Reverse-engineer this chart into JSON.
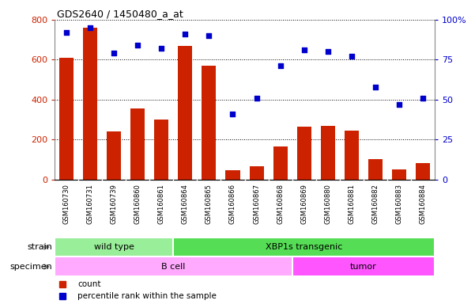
{
  "title": "GDS2640 / 1450480_a_at",
  "samples": [
    "GSM160730",
    "GSM160731",
    "GSM160739",
    "GSM160860",
    "GSM160861",
    "GSM160864",
    "GSM160865",
    "GSM160866",
    "GSM160867",
    "GSM160868",
    "GSM160869",
    "GSM160880",
    "GSM160881",
    "GSM160882",
    "GSM160883",
    "GSM160884"
  ],
  "counts": [
    610,
    760,
    240,
    355,
    300,
    670,
    570,
    45,
    65,
    165,
    265,
    270,
    245,
    100,
    50,
    80
  ],
  "percentiles": [
    92,
    95,
    79,
    84,
    82,
    91,
    90,
    41,
    51,
    71,
    81,
    80,
    77,
    58,
    47,
    51
  ],
  "bar_color": "#cc2200",
  "dot_color": "#0000cc",
  "ylim_left": [
    0,
    800
  ],
  "ylim_right": [
    0,
    100
  ],
  "yticks_left": [
    0,
    200,
    400,
    600,
    800
  ],
  "yticks_right": [
    0,
    25,
    50,
    75,
    100
  ],
  "strain_groups": [
    {
      "label": "wild type",
      "start": 0,
      "end": 5,
      "color": "#99ee99"
    },
    {
      "label": "XBP1s transgenic",
      "start": 5,
      "end": 16,
      "color": "#55dd55"
    }
  ],
  "specimen_groups": [
    {
      "label": "B cell",
      "start": 0,
      "end": 10,
      "color": "#ffaaff"
    },
    {
      "label": "tumor",
      "start": 10,
      "end": 16,
      "color": "#ff55ff"
    }
  ],
  "legend_items": [
    {
      "label": "count",
      "color": "#cc2200"
    },
    {
      "label": "percentile rank within the sample",
      "color": "#0000cc"
    }
  ],
  "strain_label": "strain",
  "specimen_label": "specimen",
  "xtick_bg_color": "#cccccc",
  "plot_bg_color": "#ffffff",
  "fig_bg_color": "#ffffff",
  "grid_color": "#000000",
  "tick_color_left": "#cc2200",
  "tick_color_right": "#0000cc",
  "spine_color": "#888888"
}
